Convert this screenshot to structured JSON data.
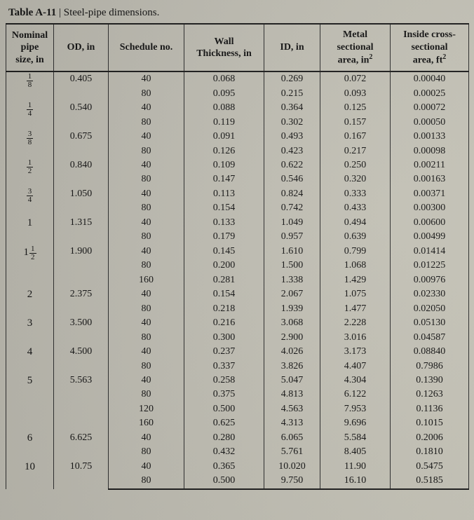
{
  "title": {
    "label": "Table A-11",
    "sep": " | ",
    "desc": "Steel-pipe dimensions."
  },
  "columns": {
    "nominal": "Nominal\npipe\nsize, in",
    "od": "OD, in",
    "schedule": "Schedule no.",
    "wall": "Wall\nThickness, in",
    "id": "ID, in",
    "metal": "Metal\nsectional\narea, in²",
    "inside": "Inside cross-\nsectional\narea, ft²"
  },
  "groups": [
    {
      "nominal_whole": "",
      "nominal_num": "1",
      "nominal_den": "8",
      "od": "0.405",
      "rows": [
        {
          "schedule": "40",
          "wall": "0.068",
          "id": "0.269",
          "metal": "0.072",
          "inside": "0.00040"
        },
        {
          "schedule": "80",
          "wall": "0.095",
          "id": "0.215",
          "metal": "0.093",
          "inside": "0.00025"
        }
      ]
    },
    {
      "nominal_whole": "",
      "nominal_num": "1",
      "nominal_den": "4",
      "od": "0.540",
      "rows": [
        {
          "schedule": "40",
          "wall": "0.088",
          "id": "0.364",
          "metal": "0.125",
          "inside": "0.00072"
        },
        {
          "schedule": "80",
          "wall": "0.119",
          "id": "0.302",
          "metal": "0.157",
          "inside": "0.00050"
        }
      ]
    },
    {
      "nominal_whole": "",
      "nominal_num": "3",
      "nominal_den": "8",
      "od": "0.675",
      "rows": [
        {
          "schedule": "40",
          "wall": "0.091",
          "id": "0.493",
          "metal": "0.167",
          "inside": "0.00133"
        },
        {
          "schedule": "80",
          "wall": "0.126",
          "id": "0.423",
          "metal": "0.217",
          "inside": "0.00098"
        }
      ]
    },
    {
      "nominal_whole": "",
      "nominal_num": "1",
      "nominal_den": "2",
      "od": "0.840",
      "rows": [
        {
          "schedule": "40",
          "wall": "0.109",
          "id": "0.622",
          "metal": "0.250",
          "inside": "0.00211"
        },
        {
          "schedule": "80",
          "wall": "0.147",
          "id": "0.546",
          "metal": "0.320",
          "inside": "0.00163"
        }
      ]
    },
    {
      "nominal_whole": "",
      "nominal_num": "3",
      "nominal_den": "4",
      "od": "1.050",
      "rows": [
        {
          "schedule": "40",
          "wall": "0.113",
          "id": "0.824",
          "metal": "0.333",
          "inside": "0.00371"
        },
        {
          "schedule": "80",
          "wall": "0.154",
          "id": "0.742",
          "metal": "0.433",
          "inside": "0.00300"
        }
      ]
    },
    {
      "nominal_whole": "1",
      "nominal_num": "",
      "nominal_den": "",
      "od": "1.315",
      "rows": [
        {
          "schedule": "40",
          "wall": "0.133",
          "id": "1.049",
          "metal": "0.494",
          "inside": "0.00600"
        },
        {
          "schedule": "80",
          "wall": "0.179",
          "id": "0.957",
          "metal": "0.639",
          "inside": "0.00499"
        }
      ]
    },
    {
      "nominal_whole": "1",
      "nominal_num": "1",
      "nominal_den": "2",
      "od": "1.900",
      "rows": [
        {
          "schedule": "40",
          "wall": "0.145",
          "id": "1.610",
          "metal": "0.799",
          "inside": "0.01414"
        },
        {
          "schedule": "80",
          "wall": "0.200",
          "id": "1.500",
          "metal": "1.068",
          "inside": "0.01225"
        },
        {
          "schedule": "160",
          "wall": "0.281",
          "id": "1.338",
          "metal": "1.429",
          "inside": "0.00976"
        }
      ]
    },
    {
      "nominal_whole": "2",
      "nominal_num": "",
      "nominal_den": "",
      "od": "2.375",
      "rows": [
        {
          "schedule": "40",
          "wall": "0.154",
          "id": "2.067",
          "metal": "1.075",
          "inside": "0.02330"
        },
        {
          "schedule": "80",
          "wall": "0.218",
          "id": "1.939",
          "metal": "1.477",
          "inside": "0.02050"
        }
      ]
    },
    {
      "nominal_whole": "3",
      "nominal_num": "",
      "nominal_den": "",
      "od": "3.500",
      "rows": [
        {
          "schedule": "40",
          "wall": "0.216",
          "id": "3.068",
          "metal": "2.228",
          "inside": "0.05130"
        },
        {
          "schedule": "80",
          "wall": "0.300",
          "id": "2.900",
          "metal": "3.016",
          "inside": "0.04587"
        }
      ]
    },
    {
      "nominal_whole": "4",
      "nominal_num": "",
      "nominal_den": "",
      "od": "4.500",
      "rows": [
        {
          "schedule": "40",
          "wall": "0.237",
          "id": "4.026",
          "metal": "3.173",
          "inside": "0.08840"
        },
        {
          "schedule": "80",
          "wall": "0.337",
          "id": "3.826",
          "metal": "4.407",
          "inside": "0.7986"
        }
      ]
    },
    {
      "nominal_whole": "5",
      "nominal_num": "",
      "nominal_den": "",
      "od": "5.563",
      "rows": [
        {
          "schedule": "40",
          "wall": "0.258",
          "id": "5.047",
          "metal": "4.304",
          "inside": "0.1390"
        },
        {
          "schedule": "80",
          "wall": "0.375",
          "id": "4.813",
          "metal": "6.122",
          "inside": "0.1263"
        },
        {
          "schedule": "120",
          "wall": "0.500",
          "id": "4.563",
          "metal": "7.953",
          "inside": "0.1136"
        },
        {
          "schedule": "160",
          "wall": "0.625",
          "id": "4.313",
          "metal": "9.696",
          "inside": "0.1015"
        }
      ]
    },
    {
      "nominal_whole": "6",
      "nominal_num": "",
      "nominal_den": "",
      "od": "6.625",
      "rows": [
        {
          "schedule": "40",
          "wall": "0.280",
          "id": "6.065",
          "metal": "5.584",
          "inside": "0.2006"
        },
        {
          "schedule": "80",
          "wall": "0.432",
          "id": "5.761",
          "metal": "8.405",
          "inside": "0.1810"
        }
      ]
    },
    {
      "nominal_whole": "10",
      "nominal_num": "",
      "nominal_den": "",
      "od": "10.75",
      "rows": [
        {
          "schedule": "40",
          "wall": "0.365",
          "id": "10.020",
          "metal": "11.90",
          "inside": "0.5475"
        },
        {
          "schedule": "80",
          "wall": "0.500",
          "id": "9.750",
          "metal": "16.10",
          "inside": "0.5185"
        }
      ]
    }
  ]
}
